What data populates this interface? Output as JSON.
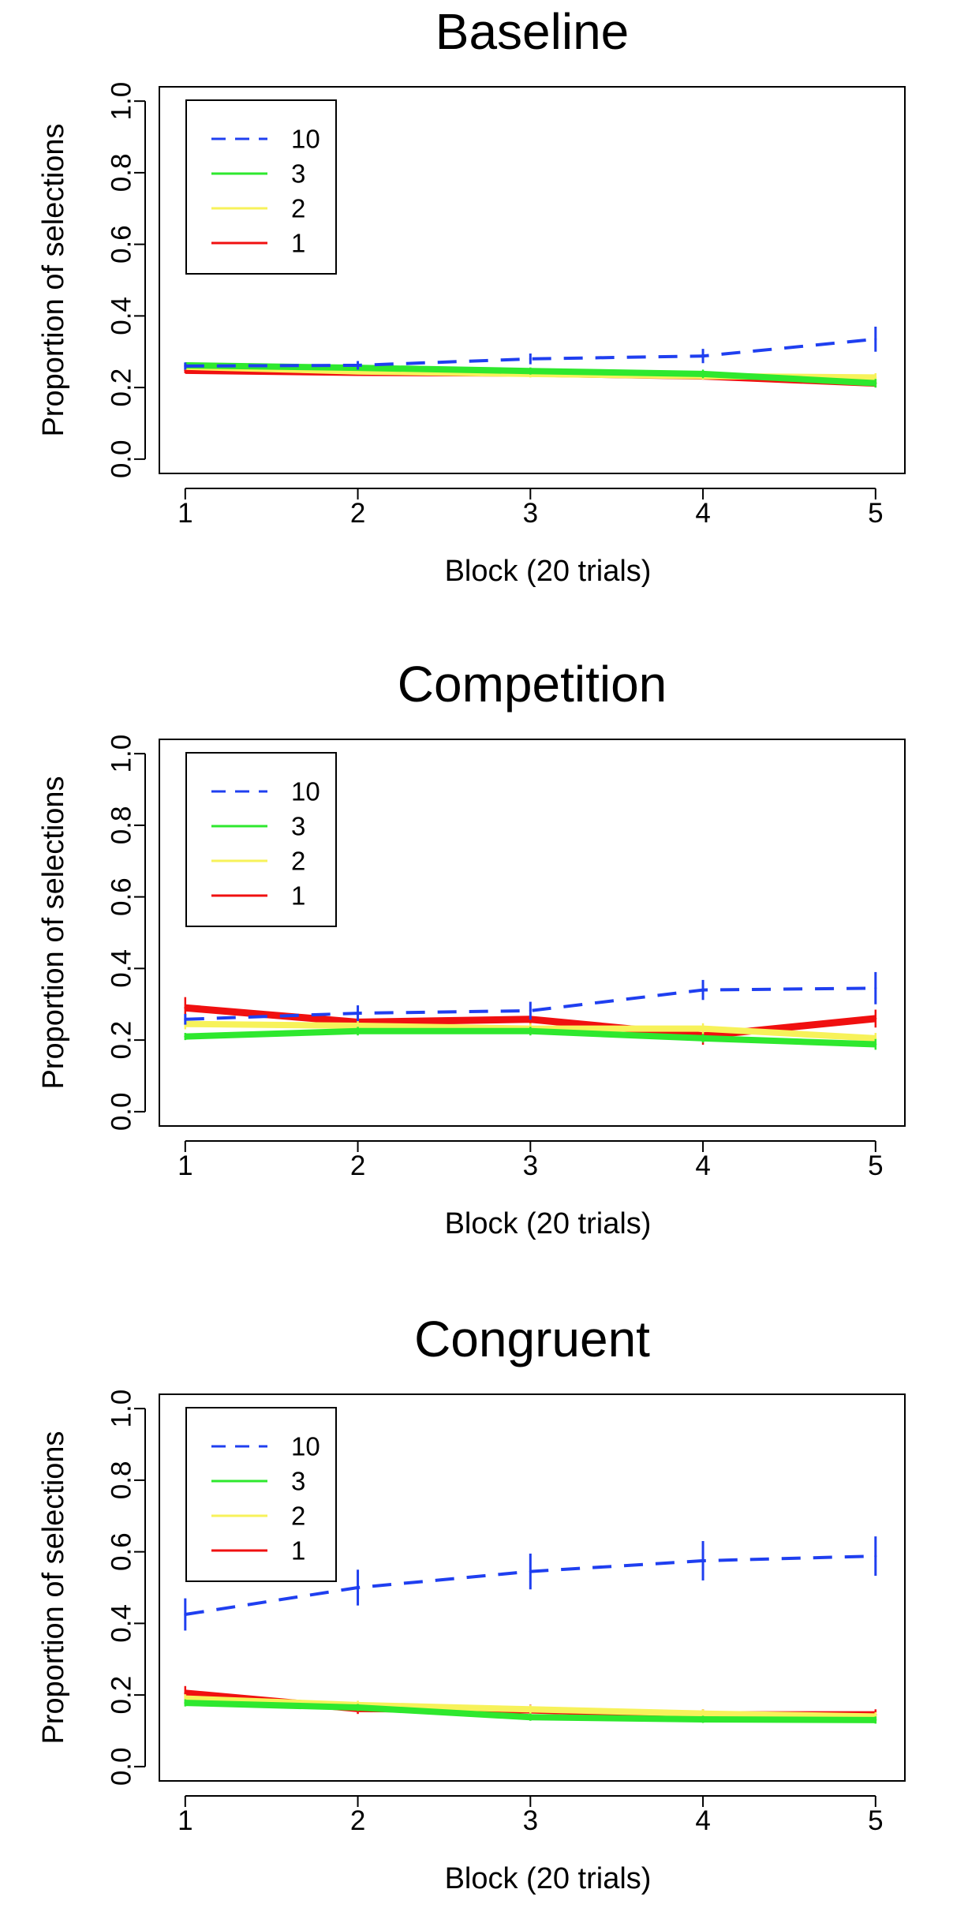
{
  "chart_data": [
    {
      "type": "line",
      "title": "Baseline",
      "xlabel": "Block (20 trials)",
      "ylabel": "Proportion of selections",
      "x": [
        1,
        2,
        3,
        4,
        5
      ],
      "xticks": [
        "1",
        "2",
        "3",
        "4",
        "5"
      ],
      "xlim": [
        0.85,
        5.17
      ],
      "ylim": [
        -0.04,
        1.04
      ],
      "yticks": [
        "0.0",
        "0.2",
        "0.4",
        "0.6",
        "0.8",
        "1.0"
      ],
      "grid": false,
      "legend": "top-left",
      "series": [
        {
          "name": "10",
          "color": "#1f3ff0",
          "style": "dashed",
          "values": [
            0.26,
            0.262,
            0.28,
            0.288,
            0.335
          ],
          "err": [
            0.01,
            0.012,
            0.015,
            0.02,
            0.035
          ]
        },
        {
          "name": "3",
          "color": "#2ee82e",
          "style": "solid",
          "values": [
            0.262,
            0.255,
            0.246,
            0.238,
            0.212
          ],
          "err": [
            0.008,
            0.008,
            0.01,
            0.012,
            0.012
          ]
        },
        {
          "name": "2",
          "color": "#f7f25a",
          "style": "solid",
          "values": [
            0.258,
            0.245,
            0.238,
            0.232,
            0.228
          ],
          "err": [
            0.008,
            0.008,
            0.01,
            0.01,
            0.012
          ]
        },
        {
          "name": "1",
          "color": "#f01010",
          "style": "solid",
          "values": [
            0.248,
            0.242,
            0.24,
            0.232,
            0.212
          ],
          "err": [
            0.008,
            0.008,
            0.01,
            0.01,
            0.012
          ]
        }
      ]
    },
    {
      "type": "line",
      "title": "Competition",
      "xlabel": "Block (20 trials)",
      "ylabel": "Proportion of selections",
      "x": [
        1,
        2,
        3,
        4,
        5
      ],
      "xticks": [
        "1",
        "2",
        "3",
        "4",
        "5"
      ],
      "xlim": [
        0.85,
        5.17
      ],
      "ylim": [
        -0.04,
        1.04
      ],
      "yticks": [
        "0.0",
        "0.2",
        "0.4",
        "0.6",
        "0.8",
        "1.0"
      ],
      "grid": false,
      "legend": "top-left",
      "series": [
        {
          "name": "10",
          "color": "#1f3ff0",
          "style": "dashed",
          "values": [
            0.258,
            0.275,
            0.282,
            0.34,
            0.345
          ],
          "err": [
            0.015,
            0.022,
            0.025,
            0.028,
            0.045
          ]
        },
        {
          "name": "3",
          "color": "#2ee82e",
          "style": "solid",
          "values": [
            0.21,
            0.225,
            0.225,
            0.205,
            0.188
          ],
          "err": [
            0.01,
            0.012,
            0.012,
            0.012,
            0.015
          ]
        },
        {
          "name": "2",
          "color": "#f7f25a",
          "style": "solid",
          "values": [
            0.245,
            0.24,
            0.232,
            0.232,
            0.205
          ],
          "err": [
            0.015,
            0.015,
            0.015,
            0.015,
            0.015
          ]
        },
        {
          "name": "1",
          "color": "#f01010",
          "style": "solid",
          "values": [
            0.29,
            0.25,
            0.258,
            0.212,
            0.26
          ],
          "err": [
            0.03,
            0.02,
            0.02,
            0.025,
            0.025
          ]
        }
      ]
    },
    {
      "type": "line",
      "title": "Congruent",
      "xlabel": "Block (20 trials)",
      "ylabel": "Proportion of selections",
      "x": [
        1,
        2,
        3,
        4,
        5
      ],
      "xticks": [
        "1",
        "2",
        "3",
        "4",
        "5"
      ],
      "xlim": [
        0.85,
        5.17
      ],
      "ylim": [
        -0.04,
        1.04
      ],
      "yticks": [
        "0.0",
        "0.2",
        "0.4",
        "0.6",
        "0.8",
        "1.0"
      ],
      "grid": false,
      "legend": "top-left",
      "series": [
        {
          "name": "10",
          "color": "#1f3ff0",
          "style": "dashed",
          "values": [
            0.425,
            0.5,
            0.545,
            0.575,
            0.588
          ],
          "err": [
            0.045,
            0.05,
            0.05,
            0.055,
            0.055
          ]
        },
        {
          "name": "3",
          "color": "#2ee82e",
          "style": "solid",
          "values": [
            0.178,
            0.165,
            0.138,
            0.132,
            0.13
          ],
          "err": [
            0.01,
            0.01,
            0.01,
            0.01,
            0.01
          ]
        },
        {
          "name": "2",
          "color": "#f7f25a",
          "style": "solid",
          "values": [
            0.19,
            0.172,
            0.16,
            0.148,
            0.14
          ],
          "err": [
            0.012,
            0.012,
            0.012,
            0.012,
            0.012
          ]
        },
        {
          "name": "1",
          "color": "#f01010",
          "style": "solid",
          "values": [
            0.205,
            0.162,
            0.158,
            0.145,
            0.145
          ],
          "err": [
            0.02,
            0.015,
            0.015,
            0.015,
            0.015
          ]
        }
      ]
    }
  ]
}
